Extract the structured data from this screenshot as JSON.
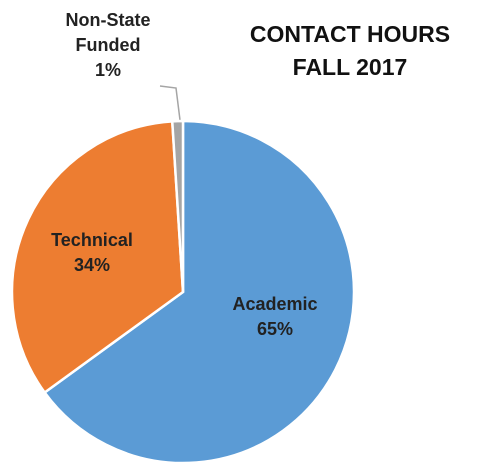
{
  "chart_data": {
    "type": "pie",
    "title": [
      "CONTACT HOURS",
      "FALL 2017"
    ],
    "categories": [
      "Academic",
      "Technical",
      "Non-State Funded"
    ],
    "values": [
      65,
      34,
      1
    ],
    "value_labels": [
      "65%",
      "34%",
      "1%"
    ],
    "colors": [
      "#5b9bd5",
      "#ed7d31",
      "#a5a5a5"
    ]
  }
}
